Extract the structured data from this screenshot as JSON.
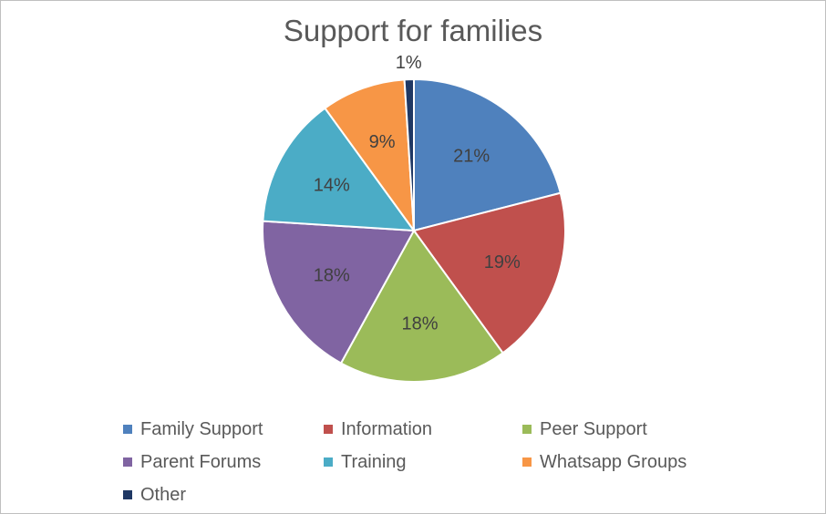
{
  "chart_data": {
    "type": "pie",
    "title": "Support for families",
    "slices": [
      {
        "label": "Family Support",
        "value": 21,
        "value_label": "21%",
        "color": "#4f81bd"
      },
      {
        "label": "Information",
        "value": 19,
        "value_label": "19%",
        "color": "#c0504d"
      },
      {
        "label": "Peer Support",
        "value": 18,
        "value_label": "18%",
        "color": "#9bbb59"
      },
      {
        "label": "Parent Forums",
        "value": 18,
        "value_label": "18%",
        "color": "#8064a2"
      },
      {
        "label": "Training",
        "value": 14,
        "value_label": "14%",
        "color": "#4bacc6"
      },
      {
        "label": "Whatsapp Groups",
        "value": 9,
        "value_label": "9%",
        "color": "#f79646"
      },
      {
        "label": "Other",
        "value": 1,
        "value_label": "1%",
        "color": "#1f3864"
      }
    ],
    "legend_position": "bottom"
  }
}
